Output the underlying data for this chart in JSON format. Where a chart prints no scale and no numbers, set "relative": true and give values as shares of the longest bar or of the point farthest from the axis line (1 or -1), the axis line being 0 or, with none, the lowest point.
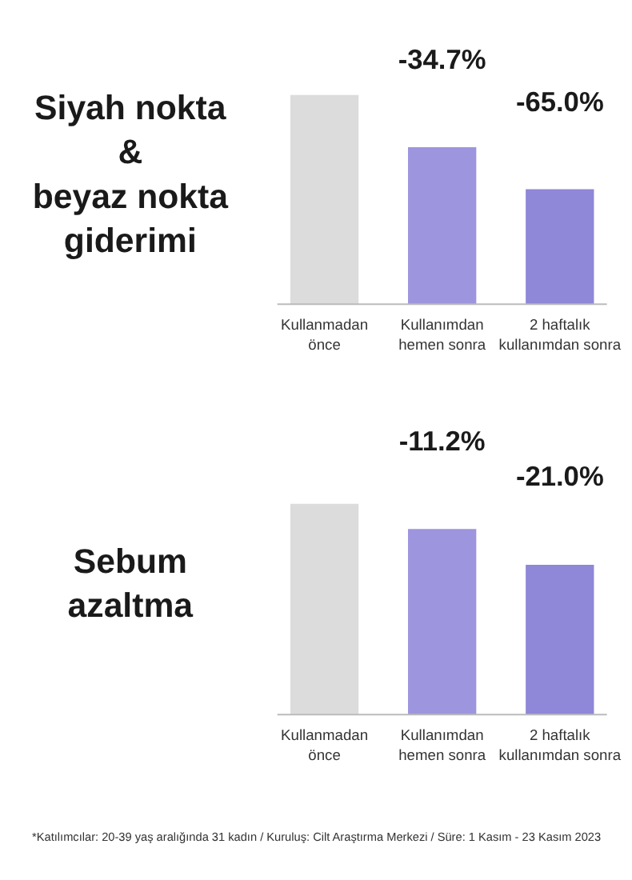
{
  "chart_data": [
    {
      "type": "bar",
      "relative": true,
      "title": "Siyah nokta\n&\nbeyaz nokta\ngiderimi",
      "categories": [
        "Kullanmadan\nönce",
        "Kullanımdan\nhemen sonra",
        "2 haftalık\nkullanımdan sonra"
      ],
      "values": [
        1,
        0.75,
        0.55
      ],
      "colors": [
        "#dcdcdc",
        "#9d95de",
        "#8f87d8"
      ],
      "annotations": [
        "-34.7%",
        "-65.0%"
      ]
    },
    {
      "type": "bar",
      "relative": true,
      "title": "Sebum\nazaltma",
      "categories": [
        "Kullanmadan\nönce",
        "Kullanımdan\nhemen sonra",
        "2 haftalık\nkullanımdan sonra"
      ],
      "values": [
        1,
        0.88,
        0.71
      ],
      "colors": [
        "#dcdcdc",
        "#9d95de",
        "#8f87d8"
      ],
      "annotations": [
        "-11.2%",
        "-21.0%",
        "*Katılımcılar: 20-39 yaş aralığında 31 kadın / Kuruluş: Cilt Araştırma Merkezi / Süre: 1 Kasım - 23 Kasım 2023"
      ]
    }
  ]
}
